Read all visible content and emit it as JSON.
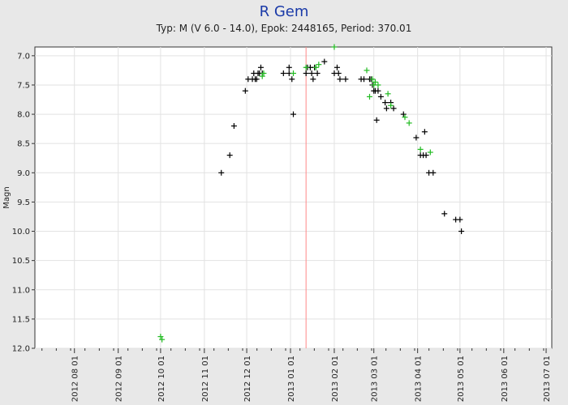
{
  "chart_data": {
    "type": "scatter",
    "title": "R Gem",
    "subtitle": "Typ: M (V 6.0 - 14.0), Epok: 2448165, Period: 370.01",
    "xlabel": "",
    "ylabel": "Magn",
    "y_inverted": true,
    "ylim": [
      6.85,
      12.0
    ],
    "xlim": [
      "2012-07-04",
      "2013-07-05"
    ],
    "y_ticks": [
      "7.0",
      "7.5",
      "8.0",
      "8.5",
      "9.0",
      "9.5",
      "10.0",
      "10.5",
      "11.0",
      "11.5",
      "12.0"
    ],
    "x_tick_labels": [
      "2012 08 01",
      "2012 09 01",
      "2012 10 01",
      "2012 11 01",
      "2012 12 01",
      "2013 01 01",
      "2013 02 01",
      "2013 03 01",
      "2013 04 01",
      "2013 05 01",
      "2013 06 01",
      "2013 07 01"
    ],
    "x_tick_dates": [
      "2012-08-01",
      "2012-09-01",
      "2012-10-01",
      "2012-11-01",
      "2012-12-01",
      "2013-01-01",
      "2013-02-01",
      "2013-03-01",
      "2013-04-01",
      "2013-05-01",
      "2013-06-01",
      "2013-07-01"
    ],
    "grid": true,
    "marker_line_date": "2013-01-12",
    "colors": {
      "series_black": "#000000",
      "series_green": "#22bb22",
      "marker_line": "#ff8888",
      "title": "#1a3aa8"
    },
    "series": [
      {
        "marker": "plus",
        "color": "#000000",
        "points": [
          [
            "2012-11-13",
            9.0
          ],
          [
            "2012-11-19",
            8.7
          ],
          [
            "2012-11-22",
            8.2
          ],
          [
            "2012-11-30",
            7.6
          ],
          [
            "2012-12-02",
            7.4
          ],
          [
            "2012-12-05",
            7.4
          ],
          [
            "2012-12-06",
            7.3
          ],
          [
            "2012-12-07",
            7.4
          ],
          [
            "2012-12-08",
            7.4
          ],
          [
            "2012-12-09",
            7.3
          ],
          [
            "2012-12-10",
            7.3
          ],
          [
            "2012-12-11",
            7.2
          ],
          [
            "2012-12-12",
            7.3
          ],
          [
            "2012-12-27",
            7.3
          ],
          [
            "2012-12-31",
            7.2
          ],
          [
            "2012-12-31",
            7.3
          ],
          [
            "2013-01-02",
            7.4
          ],
          [
            "2013-01-03",
            8.0
          ],
          [
            "2013-01-12",
            7.3
          ],
          [
            "2013-01-13",
            7.2
          ],
          [
            "2013-01-15",
            7.2
          ],
          [
            "2013-01-16",
            7.3
          ],
          [
            "2013-01-17",
            7.4
          ],
          [
            "2013-01-18",
            7.2
          ],
          [
            "2013-01-20",
            7.3
          ],
          [
            "2013-01-25",
            7.1
          ],
          [
            "2013-02-01",
            7.3
          ],
          [
            "2013-02-03",
            7.2
          ],
          [
            "2013-02-04",
            7.3
          ],
          [
            "2013-02-05",
            7.4
          ],
          [
            "2013-02-09",
            7.4
          ],
          [
            "2013-02-20",
            7.4
          ],
          [
            "2013-02-22",
            7.4
          ],
          [
            "2013-02-26",
            7.4
          ],
          [
            "2013-02-27",
            7.4
          ],
          [
            "2013-02-28",
            7.5
          ],
          [
            "2013-03-01",
            7.6
          ],
          [
            "2013-03-02",
            7.6
          ],
          [
            "2013-03-03",
            8.1
          ],
          [
            "2013-03-04",
            7.6
          ],
          [
            "2013-03-06",
            7.7
          ],
          [
            "2013-03-09",
            7.8
          ],
          [
            "2013-03-10",
            7.9
          ],
          [
            "2013-03-13",
            7.8
          ],
          [
            "2013-03-15",
            7.9
          ],
          [
            "2013-03-22",
            8.0
          ],
          [
            "2013-03-31",
            8.4
          ],
          [
            "2013-04-03",
            8.7
          ],
          [
            "2013-04-05",
            8.7
          ],
          [
            "2013-04-06",
            8.3
          ],
          [
            "2013-04-07",
            8.7
          ],
          [
            "2013-04-09",
            9.0
          ],
          [
            "2013-04-12",
            9.0
          ],
          [
            "2013-04-20",
            9.7
          ],
          [
            "2013-04-28",
            9.8
          ],
          [
            "2013-05-01",
            9.8
          ],
          [
            "2013-05-02",
            10.0
          ]
        ]
      },
      {
        "marker": "plus",
        "color": "#22bb22",
        "points": [
          [
            "2012-10-01",
            11.8
          ],
          [
            "2012-10-02",
            11.85
          ],
          [
            "2012-12-12",
            7.35
          ],
          [
            "2012-12-13",
            7.3
          ],
          [
            "2013-01-03",
            7.3
          ],
          [
            "2013-01-12",
            7.2
          ],
          [
            "2013-01-19",
            7.2
          ],
          [
            "2013-01-21",
            7.15
          ],
          [
            "2013-02-01",
            6.85
          ],
          [
            "2013-02-24",
            7.25
          ],
          [
            "2013-02-26",
            7.7
          ],
          [
            "2013-02-28",
            7.4
          ],
          [
            "2013-03-01",
            7.5
          ],
          [
            "2013-03-02",
            7.45
          ],
          [
            "2013-03-04",
            7.5
          ],
          [
            "2013-03-11",
            7.65
          ],
          [
            "2013-03-13",
            7.85
          ],
          [
            "2013-03-23",
            8.05
          ],
          [
            "2013-03-26",
            8.15
          ],
          [
            "2013-04-03",
            8.6
          ],
          [
            "2013-04-10",
            8.65
          ]
        ]
      }
    ]
  }
}
